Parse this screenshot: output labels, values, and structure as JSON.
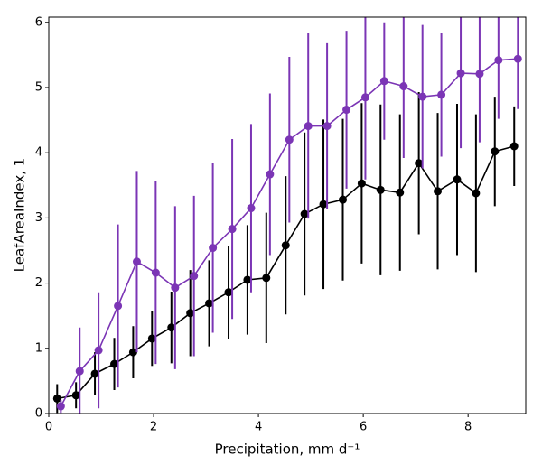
{
  "chart_data": {
    "type": "line",
    "xlabel": "Precipitation,  mm d⁻¹",
    "ylabel": "LeafAreaIndex,  1",
    "xlim": [
      0,
      9.1
    ],
    "ylim": [
      0,
      6.08
    ],
    "xticks": [
      0,
      2,
      4,
      6,
      8
    ],
    "yticks": [
      0,
      1,
      2,
      3,
      4,
      5,
      6
    ],
    "grid": false,
    "series": [
      {
        "color": "#000000",
        "x": [
          0.16,
          0.52,
          0.88,
          1.25,
          1.61,
          1.97,
          2.34,
          2.7,
          3.06,
          3.43,
          3.79,
          4.15,
          4.52,
          4.88,
          5.24,
          5.61,
          5.97,
          6.33,
          6.7,
          7.06,
          7.42,
          7.79,
          8.15,
          8.51,
          8.88
        ],
        "values": [
          0.23,
          0.28,
          0.61,
          0.76,
          0.94,
          1.15,
          1.32,
          1.54,
          1.69,
          1.86,
          2.05,
          2.08,
          2.58,
          3.06,
          3.21,
          3.28,
          3.53,
          3.43,
          3.39,
          3.84,
          3.41,
          3.59,
          3.38,
          4.02,
          4.1
        ],
        "errors": [
          0.22,
          0.2,
          0.33,
          0.4,
          0.4,
          0.42,
          0.55,
          0.66,
          0.66,
          0.71,
          0.84,
          1.0,
          1.06,
          1.25,
          1.3,
          1.24,
          1.23,
          1.31,
          1.2,
          1.09,
          1.2,
          1.16,
          1.21,
          0.84,
          0.61
        ]
      },
      {
        "color": "#7b35b5",
        "x": [
          0.23,
          0.59,
          0.95,
          1.32,
          1.68,
          2.04,
          2.41,
          2.77,
          3.13,
          3.5,
          3.86,
          4.22,
          4.59,
          4.95,
          5.31,
          5.68,
          6.04,
          6.4,
          6.77,
          7.13,
          7.49,
          7.86,
          8.22,
          8.58,
          8.95
        ],
        "values": [
          0.11,
          0.65,
          0.97,
          1.65,
          2.33,
          2.16,
          1.93,
          2.11,
          2.54,
          2.83,
          3.15,
          3.67,
          4.2,
          4.41,
          4.41,
          4.66,
          4.85,
          5.1,
          5.02,
          4.86,
          4.89,
          5.22,
          5.21,
          5.42,
          5.44
        ],
        "errors": [
          0.1,
          0.67,
          0.89,
          1.25,
          1.39,
          1.4,
          1.25,
          1.23,
          1.3,
          1.38,
          1.29,
          1.24,
          1.27,
          1.42,
          1.27,
          1.21,
          1.26,
          0.9,
          1.1,
          1.1,
          0.95,
          1.15,
          1.05,
          0.9,
          0.77
        ]
      }
    ]
  }
}
